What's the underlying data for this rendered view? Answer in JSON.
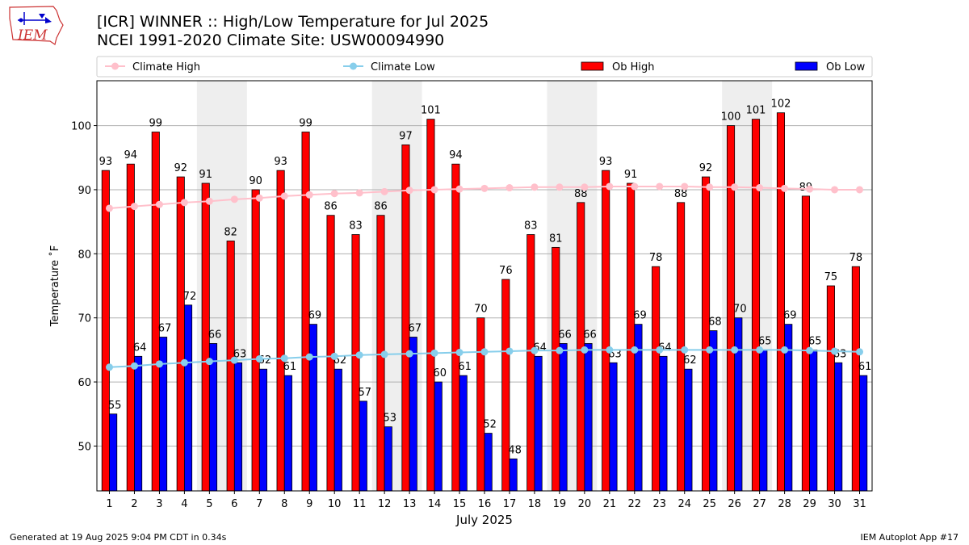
{
  "header": {
    "title_line1": "[ICR] WINNER :: High/Low Temperature for Jul 2025",
    "title_line2": "NCEI 1991-2020 Climate Site: USW00094990"
  },
  "logo": {
    "text": "IEM"
  },
  "footer": {
    "generated": "Generated at 19 Aug 2025 9:04 PM CDT in 0.34s",
    "app": "IEM Autoplot App #17"
  },
  "chart_data": {
    "type": "bar",
    "xlabel": "July 2025",
    "ylabel": "Temperature ˚F",
    "ylim": [
      43,
      107
    ],
    "yticks": [
      50,
      60,
      70,
      80,
      90,
      100
    ],
    "grid": "horizontal",
    "legend_position": "top",
    "weekend_shading": [
      [
        5,
        6
      ],
      [
        12,
        13
      ],
      [
        19,
        20
      ],
      [
        26,
        27
      ]
    ],
    "categories": [
      1,
      2,
      3,
      4,
      5,
      6,
      7,
      8,
      9,
      10,
      11,
      12,
      13,
      14,
      15,
      16,
      17,
      18,
      19,
      20,
      21,
      22,
      23,
      24,
      25,
      26,
      27,
      28,
      29,
      30,
      31
    ],
    "series": [
      {
        "name": "Climate High",
        "kind": "line",
        "color": "#ffc0cb",
        "values": [
          87.1,
          87.4,
          87.7,
          88.0,
          88.2,
          88.5,
          88.7,
          89.0,
          89.2,
          89.4,
          89.5,
          89.7,
          89.9,
          90.0,
          90.1,
          90.2,
          90.3,
          90.4,
          90.4,
          90.4,
          90.5,
          90.5,
          90.5,
          90.5,
          90.4,
          90.4,
          90.3,
          90.2,
          90.1,
          90.0,
          90.0
        ]
      },
      {
        "name": "Climate Low",
        "kind": "line",
        "color": "#87ceeb",
        "values": [
          62.3,
          62.5,
          62.8,
          63.0,
          63.2,
          63.4,
          63.6,
          63.7,
          63.9,
          64.0,
          64.2,
          64.3,
          64.4,
          64.5,
          64.6,
          64.7,
          64.8,
          64.9,
          64.9,
          65.0,
          65.0,
          65.0,
          65.0,
          65.0,
          65.0,
          65.0,
          65.0,
          65.0,
          64.9,
          64.8,
          64.7
        ]
      },
      {
        "name": "Ob High",
        "kind": "bar",
        "color": "#ff0000",
        "values": [
          93,
          94,
          99,
          92,
          91,
          82,
          90,
          93,
          99,
          86,
          83,
          86,
          97,
          101,
          94,
          70,
          76,
          83,
          81,
          88,
          93,
          91,
          78,
          88,
          92,
          100,
          101,
          102,
          89,
          75,
          78
        ]
      },
      {
        "name": "Ob Low",
        "kind": "bar",
        "color": "#0000ff",
        "values": [
          55,
          64,
          67,
          72,
          66,
          63,
          62,
          61,
          69,
          62,
          57,
          53,
          67,
          60,
          61,
          52,
          48,
          64,
          66,
          66,
          63,
          69,
          64,
          62,
          68,
          70,
          65,
          69,
          65,
          63,
          61
        ]
      }
    ]
  }
}
